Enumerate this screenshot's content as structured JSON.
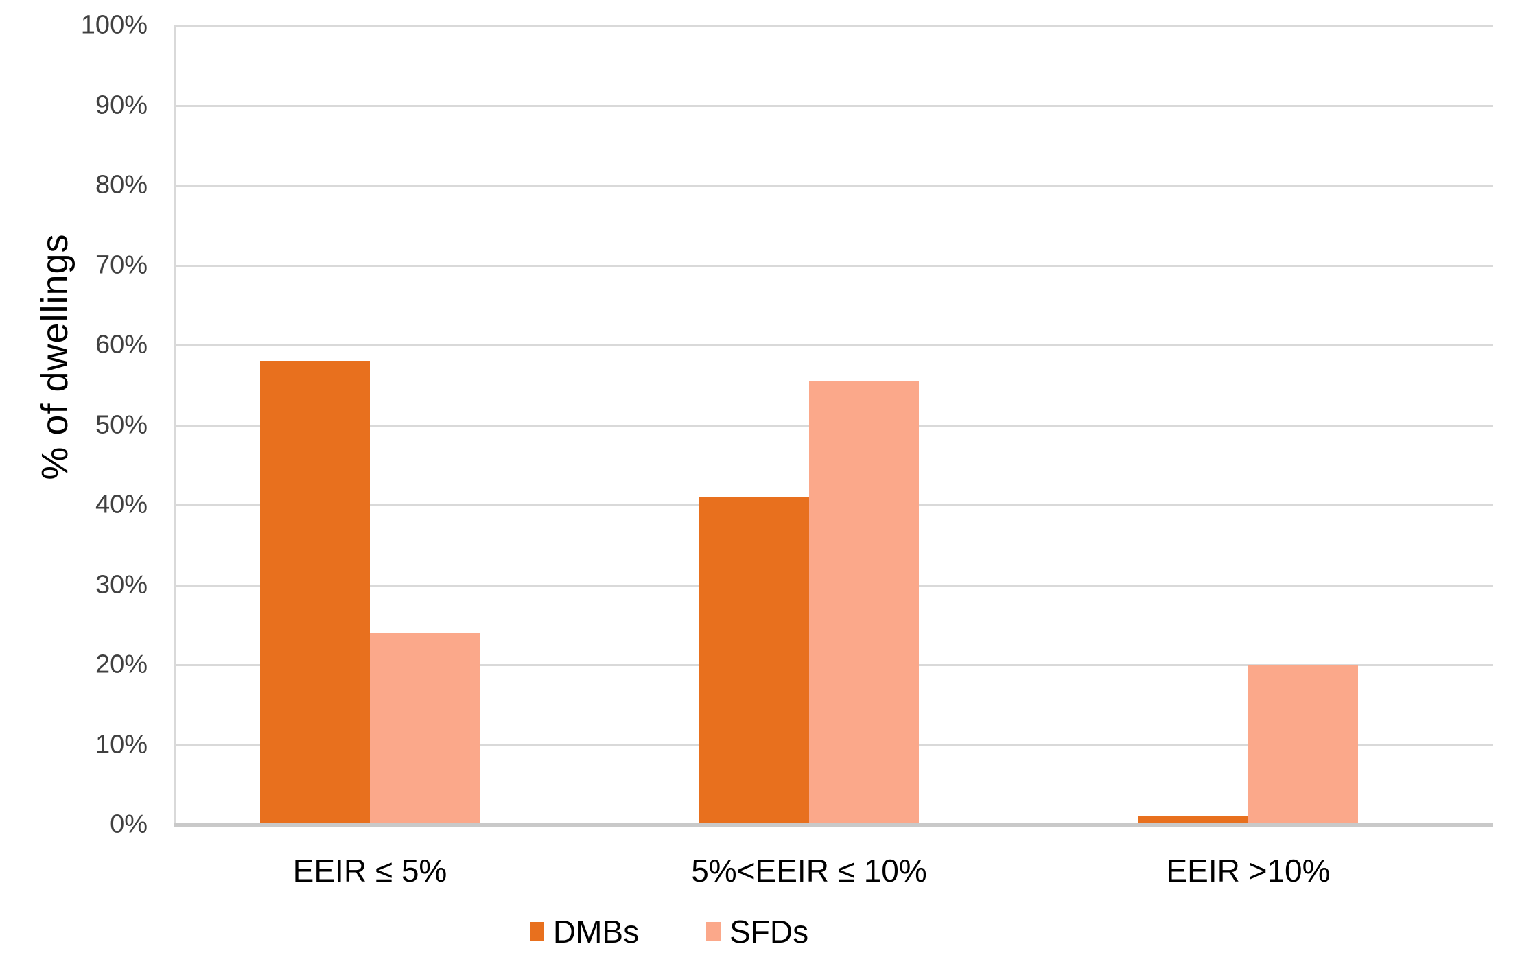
{
  "chart_data": {
    "type": "bar",
    "title": "",
    "xlabel": "",
    "ylabel": "% of dwellings",
    "categories": [
      "EEIR ≤ 5%",
      "5%<EEIR ≤ 10%",
      "EEIR >10%"
    ],
    "series": [
      {
        "name": "DMBs",
        "color": "#e8701e",
        "values": [
          58,
          41,
          1
        ]
      },
      {
        "name": "SFDs",
        "color": "#fba88a",
        "values": [
          24,
          55.5,
          20
        ]
      }
    ],
    "ylim": [
      0,
      100
    ],
    "ytick_step": 10,
    "ytick_labels": [
      "0%",
      "10%",
      "20%",
      "30%",
      "40%",
      "50%",
      "60%",
      "70%",
      "80%",
      "90%",
      "100%"
    ],
    "grid": "horizontal-only",
    "gridline_color": "#d9d9d9",
    "axis_line_color": "#c9c9c9",
    "tick_text_color": "#404040",
    "label_text_color": "#000000",
    "legend_position": "bottom-center",
    "plot_background": "#ffffff"
  }
}
